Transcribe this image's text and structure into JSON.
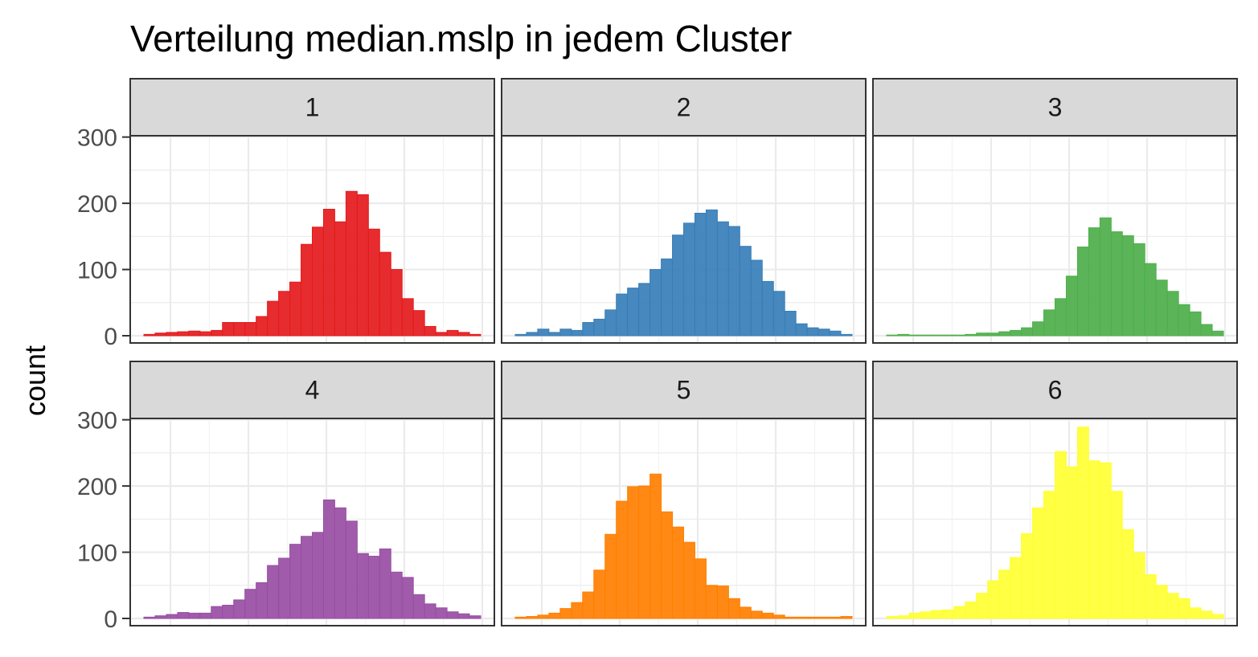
{
  "chart_data": {
    "type": "bar",
    "title": "Verteilung median.mslp in jedem Cluster",
    "xlabel": "",
    "ylabel": "count",
    "ylim": [
      0,
      360
    ],
    "y_ticks": [
      "0",
      "100",
      "200",
      "300"
    ],
    "x_tick_labels_shown": false,
    "grid": true,
    "layout": "2x3 facets",
    "bins": 30,
    "panels": [
      {
        "label": "1",
        "color": "#E41A1C",
        "values": [
          2,
          4,
          5,
          6,
          7,
          6,
          8,
          20,
          20,
          20,
          29,
          52,
          67,
          81,
          138,
          164,
          191,
          172,
          218,
          213,
          161,
          126,
          100,
          56,
          38,
          14,
          5,
          8,
          5,
          2
        ]
      },
      {
        "label": "2",
        "color": "#377EB8",
        "values": [
          2,
          5,
          10,
          5,
          10,
          8,
          20,
          25,
          39,
          63,
          72,
          79,
          100,
          116,
          152,
          170,
          185,
          190,
          172,
          165,
          135,
          114,
          82,
          67,
          37,
          18,
          12,
          10,
          7,
          2
        ]
      },
      {
        "label": "3",
        "color": "#4DAF4A",
        "values": [
          1,
          2,
          1,
          1,
          1,
          1,
          1,
          2,
          4,
          4,
          6,
          8,
          12,
          21,
          39,
          56,
          90,
          134,
          163,
          178,
          157,
          151,
          139,
          109,
          84,
          67,
          47,
          36,
          17,
          7
        ]
      },
      {
        "label": "4",
        "color": "#984EA3",
        "values": [
          2,
          4,
          6,
          9,
          8,
          8,
          18,
          20,
          28,
          44,
          54,
          80,
          91,
          112,
          124,
          130,
          179,
          167,
          147,
          98,
          94,
          105,
          70,
          62,
          36,
          22,
          16,
          10,
          7,
          4
        ]
      },
      {
        "label": "5",
        "color": "#FF7F00",
        "values": [
          2,
          3,
          5,
          8,
          15,
          24,
          40,
          73,
          127,
          177,
          199,
          200,
          218,
          161,
          138,
          115,
          90,
          50,
          49,
          30,
          17,
          11,
          8,
          5,
          2,
          2,
          2,
          2,
          2,
          3
        ]
      },
      {
        "label": "6",
        "color": "#FFFF33",
        "values": [
          3,
          4,
          8,
          10,
          12,
          13,
          18,
          25,
          38,
          57,
          73,
          92,
          128,
          167,
          192,
          252,
          229,
          289,
          238,
          235,
          192,
          134,
          99,
          66,
          50,
          38,
          30,
          16,
          11,
          6
        ]
      }
    ]
  }
}
